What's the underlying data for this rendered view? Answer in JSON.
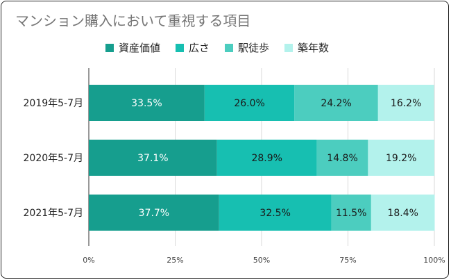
{
  "chart_data": {
    "type": "bar",
    "orientation": "horizontal",
    "stacked": "percent",
    "title": "マンション購入において重視する項目",
    "categories": [
      "2019年5-7月",
      "2020年5-7月",
      "2021年5-7月"
    ],
    "series": [
      {
        "name": "資産価値",
        "values": [
          33.5,
          37.1,
          37.7
        ],
        "color": "#169e8e",
        "label_color": "#ffffff"
      },
      {
        "name": "広さ",
        "values": [
          26.0,
          28.9,
          32.5
        ],
        "color": "#17bfb1",
        "label_color": "#1a1a1a"
      },
      {
        "name": "駅徒歩",
        "values": [
          24.2,
          14.8,
          11.5
        ],
        "color": "#4ccdbf",
        "label_color": "#1a1a1a"
      },
      {
        "name": "築年数",
        "values": [
          16.2,
          19.2,
          18.4
        ],
        "color": "#b3f2ec",
        "label_color": "#1a1a1a"
      }
    ],
    "value_labels": [
      [
        "33.5%",
        "37.1%",
        "37.7%"
      ],
      [
        "26.0%",
        "28.9%",
        "32.5%"
      ],
      [
        "24.2%",
        "14.8%",
        "11.5%"
      ],
      [
        "16.2%",
        "19.2%",
        "18.4%"
      ]
    ],
    "x_ticks": [
      "0%",
      "25%",
      "50%",
      "75%",
      "100%"
    ],
    "xlim": [
      0,
      100
    ],
    "legend_position": "top",
    "grid": true
  }
}
